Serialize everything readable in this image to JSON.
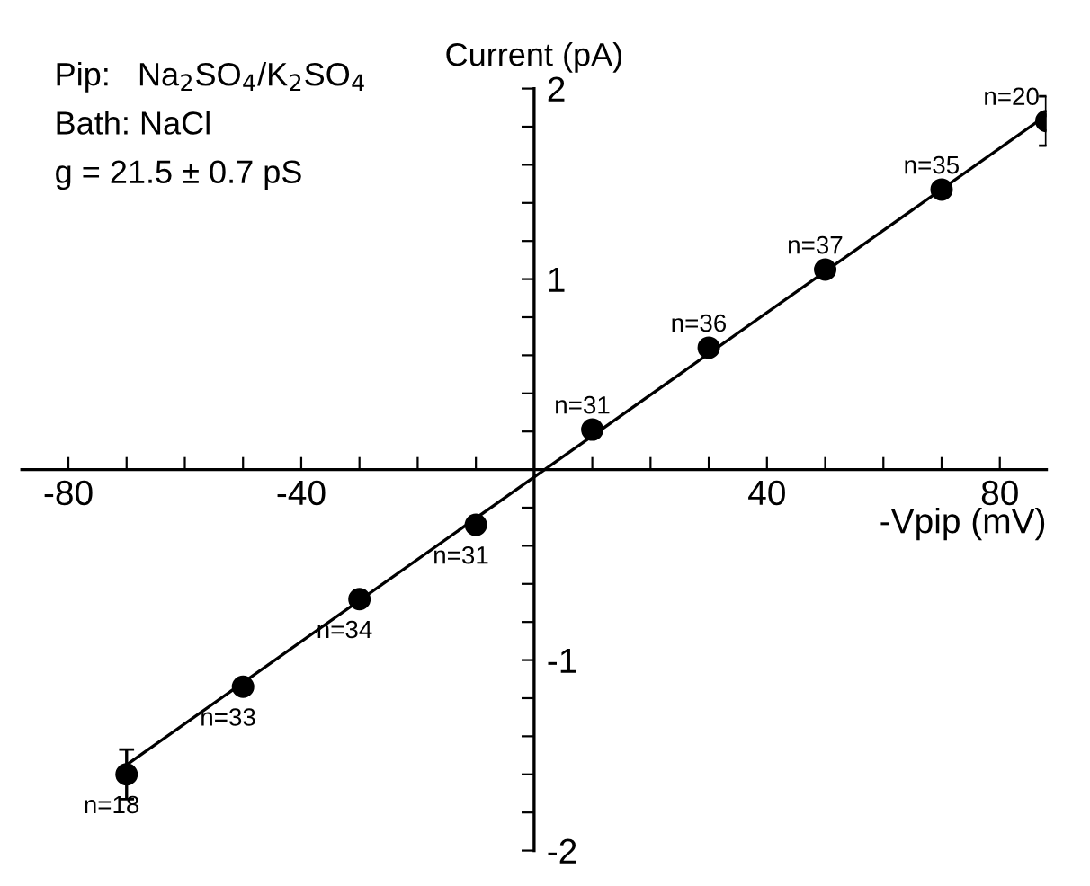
{
  "chart_data": {
    "type": "scatter",
    "xlabel": "-Vpip (mV)",
    "ylabel": "Current (pA)",
    "marker": "circle",
    "grid": false,
    "legend": false,
    "xlim": [
      -88,
      88
    ],
    "ylim": [
      -2,
      2
    ],
    "xticks": [
      -80,
      {
        "value": -70,
        "label": null
      },
      {
        "value": -60,
        "label": null
      },
      {
        "value": -50,
        "label": null
      },
      -40,
      {
        "value": -30,
        "label": null
      },
      {
        "value": -20,
        "label": null
      },
      {
        "value": -10,
        "label": null
      },
      {
        "value": 10,
        "label": null
      },
      {
        "value": 20,
        "label": null
      },
      {
        "value": 30,
        "label": null
      },
      40,
      {
        "value": 50,
        "label": null
      },
      {
        "value": 60,
        "label": null
      },
      {
        "value": 70,
        "label": null
      },
      80
    ],
    "yticks": [
      -2,
      {
        "value": -1.8,
        "label": null
      },
      {
        "value": -1.6,
        "label": null
      },
      {
        "value": -1.4,
        "label": null
      },
      {
        "value": -1.2,
        "label": null
      },
      -1,
      {
        "value": -0.8,
        "label": null
      },
      {
        "value": -0.6,
        "label": null
      },
      {
        "value": -0.4,
        "label": null
      },
      {
        "value": -0.2,
        "label": null
      },
      {
        "value": 0.2,
        "label": null
      },
      {
        "value": 0.4,
        "label": null
      },
      {
        "value": 0.6,
        "label": null
      },
      {
        "value": 0.8,
        "label": null
      },
      1,
      {
        "value": 1.2,
        "label": null
      },
      {
        "value": 1.4,
        "label": null
      },
      {
        "value": 1.6,
        "label": null
      },
      {
        "value": 1.8,
        "label": null
      },
      2
    ],
    "series": [
      {
        "color": "#000000",
        "x": [
          -70,
          -50,
          -30,
          -10,
          10,
          30,
          50,
          70,
          88
        ],
        "values": [
          -1.6,
          -1.14,
          -0.68,
          -0.29,
          0.21,
          0.64,
          1.05,
          1.47,
          1.83
        ],
        "errors": [
          0.13,
          null,
          null,
          null,
          null,
          null,
          null,
          null,
          0.13
        ]
      },
      {
        "type": "line",
        "color": "#000000",
        "marker": "none",
        "x": [
          -70,
          88
        ],
        "values": [
          -1.55,
          1.86
        ]
      }
    ],
    "annotations": [
      "Pip:   Na$_{2}$SO$_{4}$/K$_{2}$SO$_{4}$",
      "Bath: NaCl",
      "g = 21.5 ± 0.7 pS",
      {
        "text": "n=18",
        "x": -70,
        "y": -1.6
      },
      {
        "text": "n=33",
        "x": -50,
        "y": -1.14
      },
      {
        "text": "n=34",
        "x": -30,
        "y": -0.68
      },
      {
        "text": "n=31",
        "x": -10,
        "y": -0.29
      },
      {
        "text": "n=31",
        "x": 10,
        "y": 0.21
      },
      {
        "text": "n=36",
        "x": 30,
        "y": 0.64
      },
      {
        "text": "n=37",
        "x": 50,
        "y": 1.05
      },
      {
        "text": "n=35",
        "x": 70,
        "y": 1.47
      },
      {
        "text": "n=20",
        "x": 88,
        "y": 1.83
      }
    ]
  }
}
